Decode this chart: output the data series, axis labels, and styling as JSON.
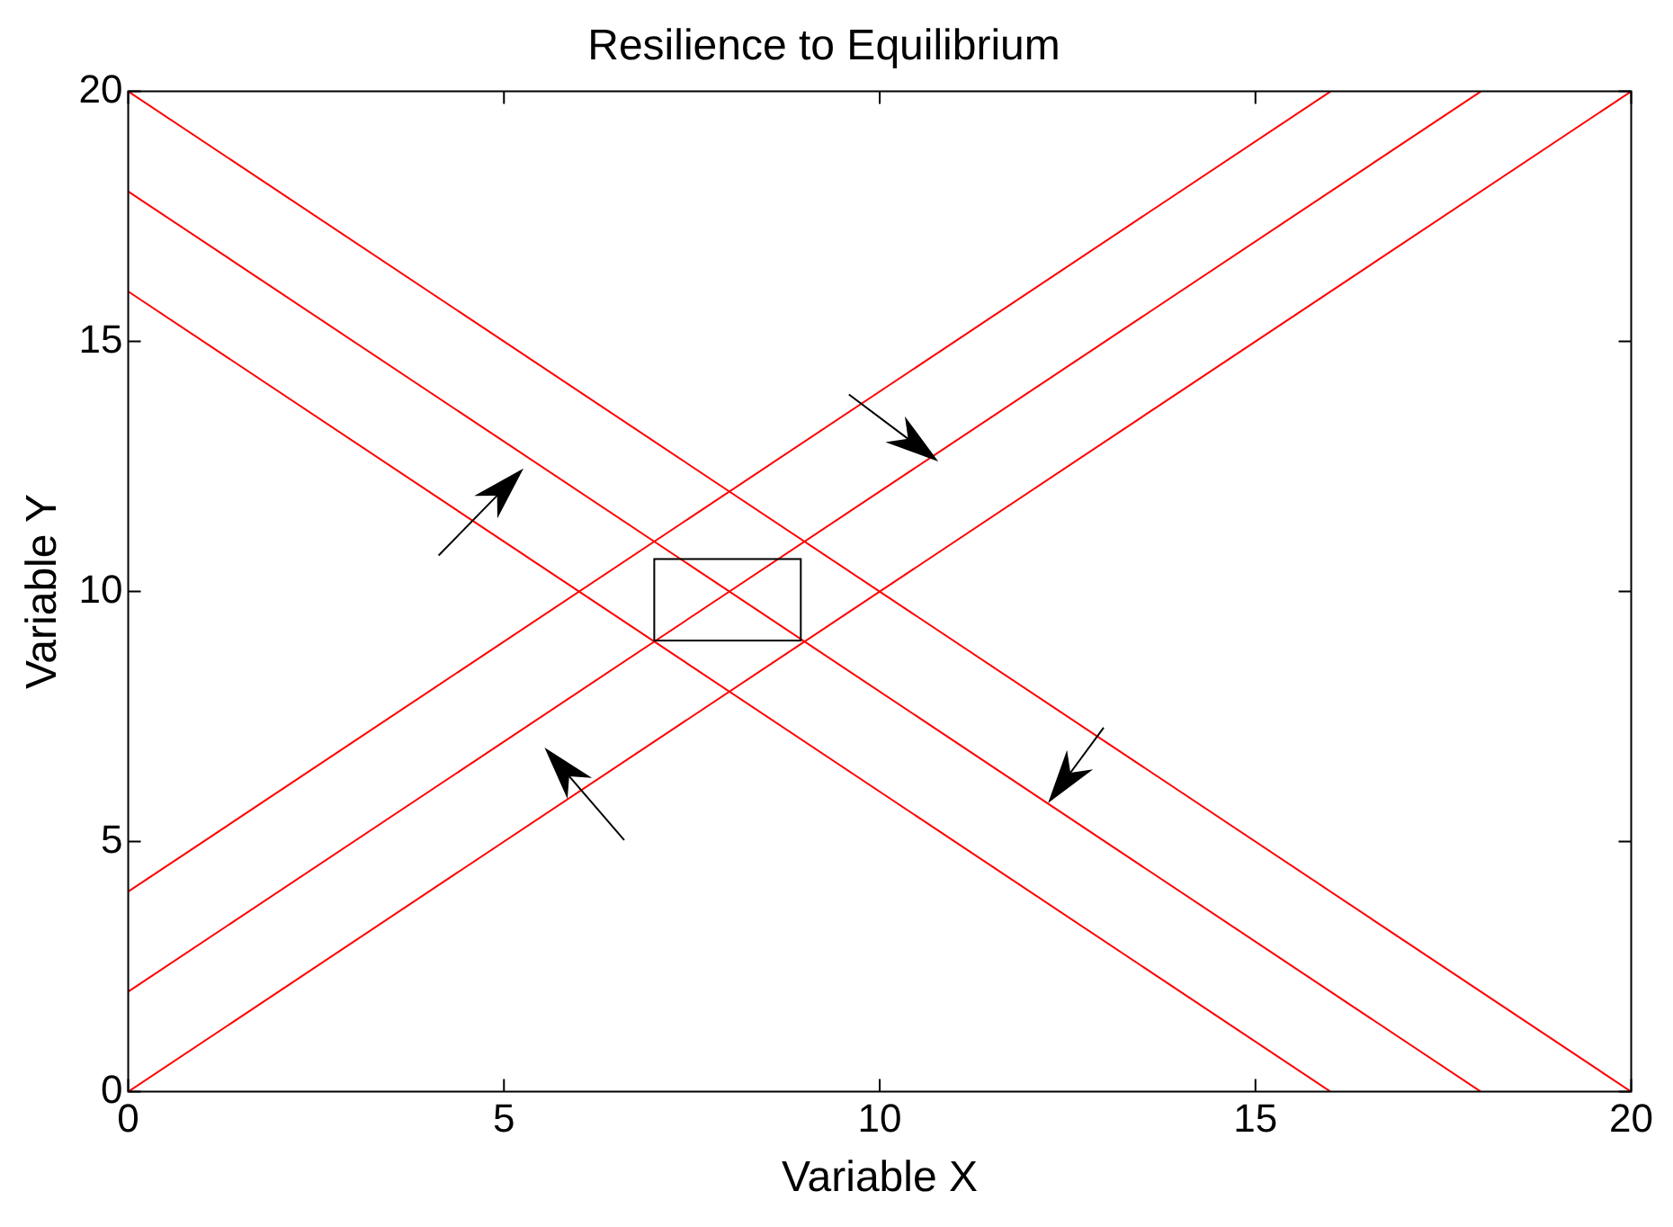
{
  "chart_data": {
    "type": "line",
    "title": "Resilience to Equilibrium",
    "xlabel": "Variable X",
    "ylabel": "Variable Y",
    "xlim": [
      0,
      20
    ],
    "ylim": [
      0,
      20
    ],
    "xticks": [
      0,
      5,
      10,
      15,
      20
    ],
    "yticks": [
      0,
      5,
      10,
      15,
      20
    ],
    "grid": false,
    "legend": false,
    "marker": "none",
    "line_style": "solid",
    "series": [
      {
        "color": "#ff0000",
        "x": [
          0,
          16
        ],
        "values": [
          4,
          20
        ]
      },
      {
        "color": "#ff0000",
        "x": [
          0,
          18
        ],
        "values": [
          2,
          20
        ]
      },
      {
        "color": "#ff0000",
        "x": [
          0,
          20
        ],
        "values": [
          0,
          20
        ]
      },
      {
        "color": "#ff0000",
        "x": [
          0,
          20
        ],
        "values": [
          20,
          0
        ]
      },
      {
        "color": "#ff0000",
        "x": [
          0,
          18
        ],
        "values": [
          18,
          0
        ]
      },
      {
        "color": "#ff0000",
        "x": [
          0,
          16
        ],
        "values": [
          16,
          0
        ]
      }
    ]
  }
}
